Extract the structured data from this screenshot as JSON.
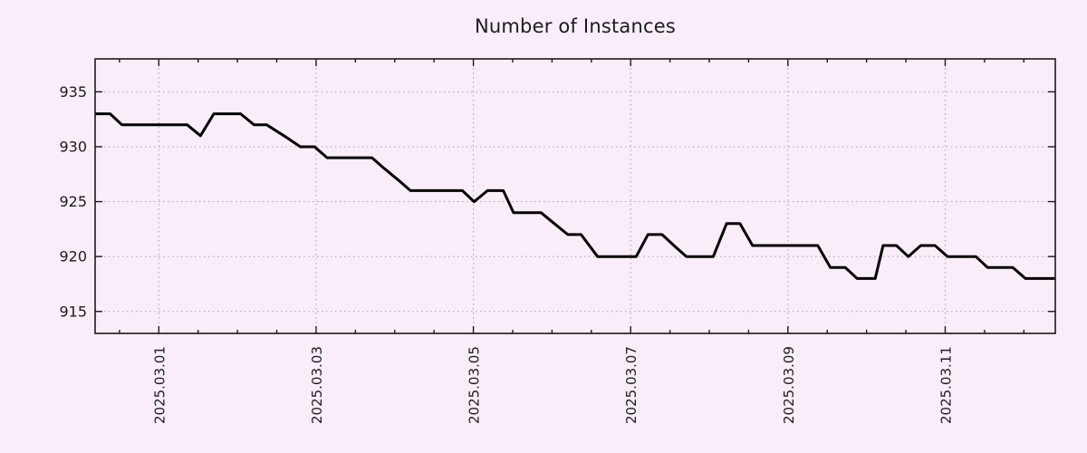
{
  "title": "Number of Instances",
  "colors": {
    "background": "#f8edf8",
    "line": "#000000",
    "grid": "#ab9fab",
    "axis": "#1a1a1a",
    "text": "#1c1c1c"
  },
  "chart_data": {
    "type": "line",
    "title": "Number of Instances",
    "legend": false,
    "x_axis": {
      "unit": "days since 2025-03-01 00:00",
      "range": [
        -0.81,
        11.4
      ],
      "major_ticks": [
        {
          "t": 0,
          "label": "2025.03.01"
        },
        {
          "t": 2,
          "label": "2025.03.03"
        },
        {
          "t": 4,
          "label": "2025.03.05"
        },
        {
          "t": 6,
          "label": "2025.03.07"
        },
        {
          "t": 8,
          "label": "2025.03.09"
        },
        {
          "t": 10,
          "label": "2025.03.11"
        }
      ],
      "minor_tick_step": 0.5,
      "grid": true
    },
    "y_axis": {
      "range": [
        913,
        938
      ],
      "major_ticks": [
        915,
        920,
        925,
        930,
        935
      ],
      "grid": true
    },
    "series": [
      {
        "name": "Number of Instances",
        "color": "#000000",
        "points": [
          [
            -0.81,
            933
          ],
          [
            -0.62,
            933
          ],
          [
            -0.47,
            932
          ],
          [
            0.36,
            932
          ],
          [
            0.53,
            931
          ],
          [
            0.7,
            933
          ],
          [
            1.04,
            933
          ],
          [
            1.21,
            932
          ],
          [
            1.37,
            932
          ],
          [
            1.59,
            931
          ],
          [
            1.8,
            930
          ],
          [
            1.98,
            930
          ],
          [
            2.14,
            929
          ],
          [
            2.71,
            929
          ],
          [
            2.87,
            928
          ],
          [
            3.04,
            927
          ],
          [
            3.2,
            926
          ],
          [
            3.86,
            926
          ],
          [
            4.01,
            925
          ],
          [
            4.18,
            926
          ],
          [
            4.38,
            926
          ],
          [
            4.51,
            924
          ],
          [
            4.86,
            924
          ],
          [
            5.03,
            923
          ],
          [
            5.2,
            922
          ],
          [
            5.37,
            922
          ],
          [
            5.58,
            920
          ],
          [
            6.07,
            920
          ],
          [
            6.22,
            922
          ],
          [
            6.4,
            922
          ],
          [
            6.55,
            921
          ],
          [
            6.71,
            920
          ],
          [
            7.05,
            920
          ],
          [
            7.22,
            923
          ],
          [
            7.39,
            923
          ],
          [
            7.55,
            921
          ],
          [
            8.38,
            921
          ],
          [
            8.54,
            919
          ],
          [
            8.73,
            919
          ],
          [
            8.88,
            918
          ],
          [
            9.11,
            918
          ],
          [
            9.21,
            921
          ],
          [
            9.38,
            921
          ],
          [
            9.53,
            920
          ],
          [
            9.69,
            921
          ],
          [
            9.87,
            921
          ],
          [
            10.03,
            920
          ],
          [
            10.39,
            920
          ],
          [
            10.54,
            919
          ],
          [
            10.86,
            919
          ],
          [
            11.02,
            918
          ],
          [
            11.4,
            918
          ]
        ]
      }
    ]
  }
}
